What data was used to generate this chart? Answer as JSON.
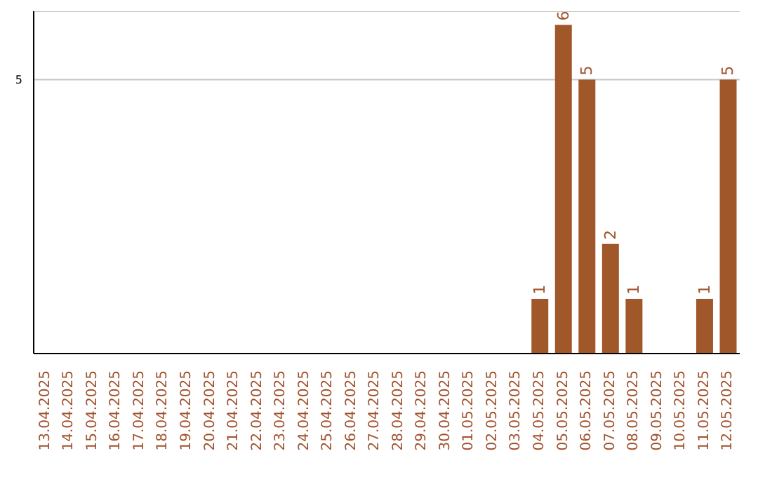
{
  "chart_data": {
    "type": "bar",
    "categories": [
      "13.04.2025",
      "14.04.2025",
      "15.04.2025",
      "16.04.2025",
      "17.04.2025",
      "18.04.2025",
      "19.04.2025",
      "20.04.2025",
      "21.04.2025",
      "22.04.2025",
      "23.04.2025",
      "24.04.2025",
      "25.04.2025",
      "26.04.2025",
      "27.04.2025",
      "28.04.2025",
      "29.04.2025",
      "30.04.2025",
      "01.05.2025",
      "02.05.2025",
      "03.05.2025",
      "04.05.2025",
      "05.05.2025",
      "06.05.2025",
      "07.05.2025",
      "08.05.2025",
      "09.05.2025",
      "10.05.2025",
      "11.05.2025",
      "12.05.2025"
    ],
    "values": [
      null,
      null,
      null,
      null,
      null,
      null,
      null,
      null,
      null,
      null,
      null,
      null,
      null,
      null,
      null,
      null,
      null,
      null,
      null,
      null,
      null,
      1,
      6,
      5,
      2,
      1,
      null,
      null,
      1,
      5
    ],
    "color": "#a0582a",
    "ylim": [
      0,
      6.25
    ],
    "yticks": [
      5
    ],
    "grid": "y",
    "data_labels": true
  }
}
